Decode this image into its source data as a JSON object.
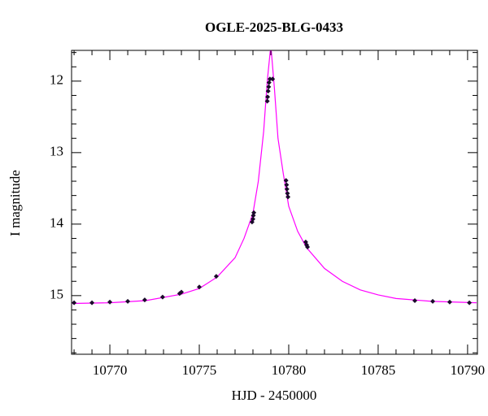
{
  "chart_data": {
    "type": "scatter",
    "title": "OGLE-2025-BLG-0433",
    "x_label": "HJD - 2450000",
    "y_label": "I magnitude",
    "xlim": [
      10767.86,
      10790.55
    ],
    "ylim": [
      15.82,
      11.57
    ],
    "xticks": [
      10770,
      10775,
      10780,
      10785,
      10790
    ],
    "yticks": [
      12,
      13,
      14,
      15
    ],
    "xminorticks": [
      10768,
      10769,
      10771,
      10772,
      10773,
      10774,
      10776,
      10777,
      10778,
      10779,
      10781,
      10782,
      10783,
      10784,
      10786,
      10787,
      10788,
      10789
    ],
    "yminorticks": [
      11.6,
      11.8,
      12.2,
      12.4,
      12.6,
      12.8,
      13.2,
      13.4,
      13.6,
      13.8,
      14.2,
      14.4,
      14.6,
      14.8,
      15.2,
      15.4,
      15.6,
      15.8
    ],
    "series": [
      {
        "type": "line",
        "color": "#ff00ff",
        "x": [
          10767.9,
          10770,
          10772,
          10774,
          10775,
          10776,
          10777,
          10777.5,
          10778,
          10778.3,
          10778.6,
          10778.8,
          10779.0,
          10779.2,
          10779.4,
          10779.7,
          10780,
          10780.5,
          10781,
          10782,
          10783,
          10784,
          10785,
          10786,
          10788,
          10790.5
        ],
        "values": [
          15.11,
          15.1,
          15.07,
          14.98,
          14.9,
          14.74,
          14.47,
          14.2,
          13.85,
          13.4,
          12.7,
          12.0,
          11.5,
          12.1,
          12.8,
          13.3,
          13.75,
          14.1,
          14.33,
          14.62,
          14.8,
          14.92,
          14.99,
          15.04,
          15.08,
          15.1
        ]
      },
      {
        "type": "scatter",
        "color": "#1a0a2a",
        "x": [
          10768,
          10769,
          10770,
          10771,
          10771.95,
          10772.95,
          10773.9,
          10774,
          10775,
          10775.95,
          10777.95,
          10778,
          10778.02,
          10778.05,
          10778.8,
          10778.82,
          10778.85,
          10778.88,
          10778.9,
          10778.95,
          10779.1,
          10779.85,
          10779.88,
          10779.9,
          10779.93,
          10779.96,
          10780.95,
          10781,
          10781.05,
          10787.05,
          10788.05,
          10789,
          10790.1
        ],
        "values": [
          15.1,
          15.1,
          15.09,
          15.08,
          15.06,
          15.02,
          14.97,
          14.95,
          14.88,
          14.73,
          13.97,
          13.93,
          13.88,
          13.84,
          12.28,
          12.22,
          12.14,
          12.08,
          12.02,
          11.97,
          11.97,
          13.39,
          13.45,
          13.51,
          13.57,
          13.62,
          14.25,
          14.29,
          14.32,
          15.07,
          15.08,
          15.09,
          15.1
        ]
      }
    ]
  }
}
